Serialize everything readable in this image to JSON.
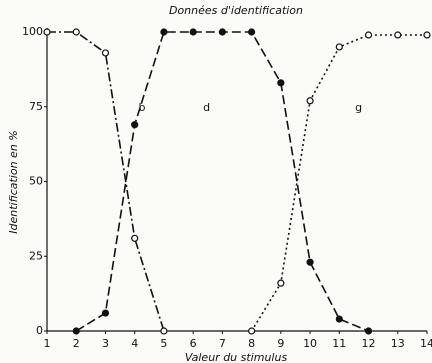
{
  "chart_data": {
    "type": "line",
    "title": "Données d'identification",
    "x_label": "Valeur du stimulus",
    "y_label": "Identification en %",
    "xlim": [
      1,
      14
    ],
    "ylim": [
      0,
      100
    ],
    "xticks": [
      1,
      2,
      3,
      4,
      5,
      6,
      7,
      8,
      9,
      10,
      11,
      12,
      13,
      14
    ],
    "yticks": [
      0,
      25,
      50,
      75,
      100
    ],
    "grid": false,
    "series": [
      {
        "name": "b",
        "color": "#111111",
        "marker": "open",
        "dash": "dashdot",
        "x": [
          1,
          2,
          3,
          4,
          5
        ],
        "values": [
          100,
          100,
          93,
          31,
          0
        ]
      },
      {
        "name": "d",
        "color": "#111111",
        "marker": "filled",
        "dash": "dashed",
        "x": [
          2,
          3,
          4,
          5,
          6,
          7,
          8,
          9,
          10,
          11,
          12
        ],
        "values": [
          0,
          6,
          69,
          100,
          100,
          100,
          100,
          83,
          23,
          4,
          0
        ]
      },
      {
        "name": "g",
        "color": "#111111",
        "marker": "open",
        "dash": "dotted",
        "x": [
          8,
          9,
          10,
          11,
          12,
          13,
          14
        ],
        "values": [
          0,
          16,
          77,
          95,
          99,
          99,
          99
        ]
      }
    ]
  }
}
